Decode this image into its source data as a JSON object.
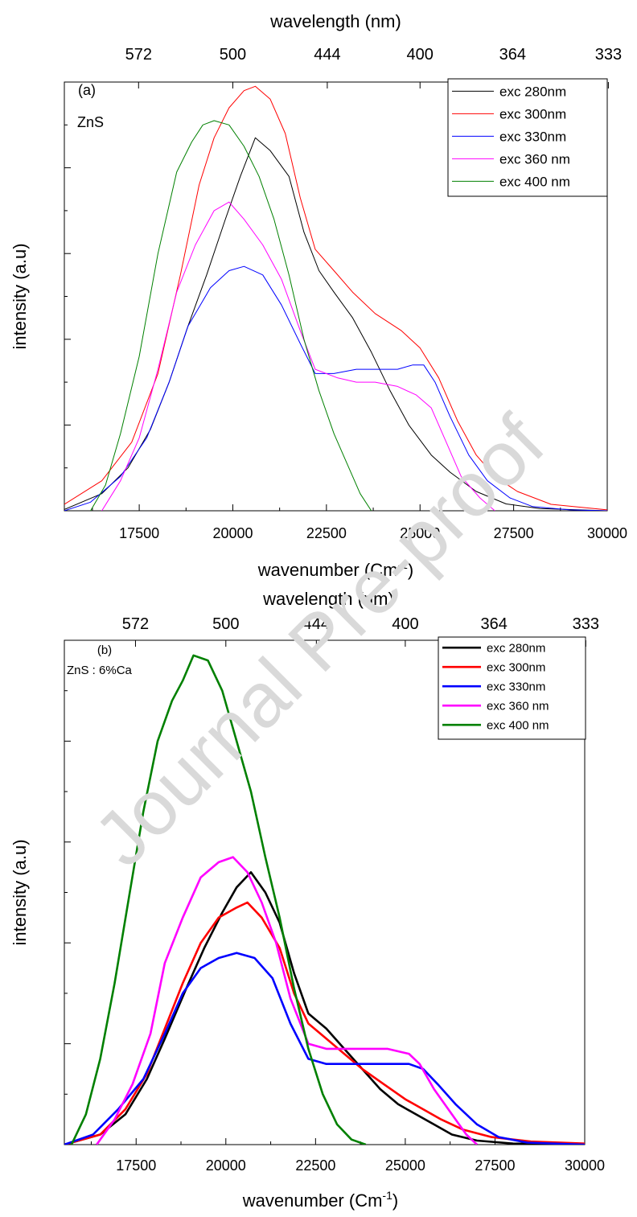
{
  "watermark": "Journal Pre-proof",
  "chart_data": [
    {
      "type": "line",
      "panel_label": "(a)",
      "sample_label": "ZnS",
      "xlabel": "wavenumber (Cm",
      "xlabel_sup": "-1",
      "xlabel_suffix": ")",
      "top_xlabel": "wavelength (nm)",
      "ylabel": "intensity (a.u)",
      "xlim": [
        15500,
        30000
      ],
      "ylim": [
        0,
        1.0
      ],
      "x_ticks": [
        "17500",
        "20000",
        "22500",
        "25000",
        "27500",
        "30000"
      ],
      "top_ticks": [
        "572",
        "500",
        "444",
        "400",
        "364",
        "333"
      ],
      "legend_position": "top-right",
      "grid": false,
      "series": [
        {
          "name": "exc 280nm",
          "color": "#000000",
          "points": [
            [
              15500,
              0.003
            ],
            [
              16500,
              0.04
            ],
            [
              17200,
              0.1
            ],
            [
              17800,
              0.19
            ],
            [
              18300,
              0.3
            ],
            [
              18800,
              0.43
            ],
            [
              19300,
              0.55
            ],
            [
              19800,
              0.68
            ],
            [
              20200,
              0.78
            ],
            [
              20600,
              0.87
            ],
            [
              21000,
              0.84
            ],
            [
              21500,
              0.78
            ],
            [
              21900,
              0.65
            ],
            [
              22300,
              0.56
            ],
            [
              22700,
              0.51
            ],
            [
              23200,
              0.45
            ],
            [
              23700,
              0.37
            ],
            [
              24200,
              0.28
            ],
            [
              24700,
              0.2
            ],
            [
              25300,
              0.13
            ],
            [
              25800,
              0.09
            ],
            [
              26500,
              0.045
            ],
            [
              27300,
              0.016
            ],
            [
              28200,
              0.005
            ],
            [
              30000,
              0.0
            ]
          ]
        },
        {
          "name": "exc 300nm",
          "color": "#ff0000",
          "points": [
            [
              15500,
              0.015
            ],
            [
              16500,
              0.07
            ],
            [
              17300,
              0.16
            ],
            [
              18000,
              0.32
            ],
            [
              18600,
              0.55
            ],
            [
              19100,
              0.76
            ],
            [
              19500,
              0.87
            ],
            [
              19900,
              0.94
            ],
            [
              20300,
              0.98
            ],
            [
              20600,
              0.99
            ],
            [
              21000,
              0.96
            ],
            [
              21400,
              0.88
            ],
            [
              21800,
              0.73
            ],
            [
              22200,
              0.61
            ],
            [
              22700,
              0.56
            ],
            [
              23200,
              0.51
            ],
            [
              23800,
              0.46
            ],
            [
              24500,
              0.42
            ],
            [
              25000,
              0.38
            ],
            [
              25500,
              0.31
            ],
            [
              26000,
              0.21
            ],
            [
              26500,
              0.13
            ],
            [
              27000,
              0.08
            ],
            [
              27600,
              0.045
            ],
            [
              28500,
              0.015
            ],
            [
              30000,
              0.002
            ]
          ]
        },
        {
          "name": "exc 330nm",
          "color": "#0000ff",
          "points": [
            [
              15500,
              0.0
            ],
            [
              16200,
              0.02
            ],
            [
              17000,
              0.08
            ],
            [
              17700,
              0.17
            ],
            [
              18300,
              0.3
            ],
            [
              18800,
              0.43
            ],
            [
              19400,
              0.52
            ],
            [
              19900,
              0.56
            ],
            [
              20300,
              0.57
            ],
            [
              20800,
              0.55
            ],
            [
              21300,
              0.48
            ],
            [
              21800,
              0.39
            ],
            [
              22200,
              0.32
            ],
            [
              22700,
              0.32
            ],
            [
              23300,
              0.33
            ],
            [
              23800,
              0.33
            ],
            [
              24400,
              0.33
            ],
            [
              24800,
              0.34
            ],
            [
              25100,
              0.34
            ],
            [
              25400,
              0.3
            ],
            [
              25800,
              0.22
            ],
            [
              26300,
              0.13
            ],
            [
              26800,
              0.07
            ],
            [
              27400,
              0.03
            ],
            [
              28000,
              0.01
            ],
            [
              29000,
              0.002
            ],
            [
              30000,
              0.0
            ]
          ]
        },
        {
          "name": "exc 360 nm",
          "color": "#ff00ff",
          "points": [
            [
              16500,
              0.0
            ],
            [
              17000,
              0.07
            ],
            [
              17500,
              0.17
            ],
            [
              18000,
              0.33
            ],
            [
              18500,
              0.51
            ],
            [
              19000,
              0.62
            ],
            [
              19500,
              0.7
            ],
            [
              19900,
              0.72
            ],
            [
              20300,
              0.68
            ],
            [
              20800,
              0.62
            ],
            [
              21300,
              0.54
            ],
            [
              21800,
              0.42
            ],
            [
              22200,
              0.33
            ],
            [
              22800,
              0.31
            ],
            [
              23300,
              0.3
            ],
            [
              23800,
              0.3
            ],
            [
              24400,
              0.29
            ],
            [
              24900,
              0.27
            ],
            [
              25300,
              0.24
            ],
            [
              25700,
              0.16
            ],
            [
              26100,
              0.08
            ],
            [
              26600,
              0.03
            ],
            [
              27000,
              0.0
            ]
          ]
        },
        {
          "name": "exc 400 nm",
          "color": "#008000",
          "points": [
            [
              16200,
              0.0
            ],
            [
              16600,
              0.06
            ],
            [
              17000,
              0.18
            ],
            [
              17500,
              0.36
            ],
            [
              18000,
              0.6
            ],
            [
              18500,
              0.79
            ],
            [
              18900,
              0.86
            ],
            [
              19200,
              0.9
            ],
            [
              19500,
              0.91
            ],
            [
              19900,
              0.9
            ],
            [
              20300,
              0.85
            ],
            [
              20700,
              0.78
            ],
            [
              21100,
              0.68
            ],
            [
              21500,
              0.55
            ],
            [
              21900,
              0.4
            ],
            [
              22300,
              0.28
            ],
            [
              22700,
              0.18
            ],
            [
              23100,
              0.1
            ],
            [
              23400,
              0.04
            ],
            [
              23700,
              0.0
            ]
          ]
        }
      ]
    },
    {
      "type": "line",
      "panel_label": "(b)",
      "sample_label": "ZnS : 6%Ca",
      "xlabel": "wavenumber (Cm",
      "xlabel_sup": "-1",
      "xlabel_suffix": ")",
      "top_xlabel": "wavelength (nm)",
      "ylabel": "intensity (a.u)",
      "xlim": [
        15500,
        30000
      ],
      "ylim": [
        0,
        1.0
      ],
      "x_ticks": [
        "17500",
        "20000",
        "22500",
        "25000",
        "27500",
        "30000"
      ],
      "top_ticks": [
        "572",
        "500",
        "444",
        "400",
        "364",
        "333"
      ],
      "legend_position": "top-right",
      "grid": false,
      "series": [
        {
          "name": "exc 280nm",
          "color": "#000000",
          "points": [
            [
              15500,
              0.0
            ],
            [
              16500,
              0.02
            ],
            [
              17200,
              0.06
            ],
            [
              17800,
              0.13
            ],
            [
              18300,
              0.21
            ],
            [
              18900,
              0.31
            ],
            [
              19400,
              0.39
            ],
            [
              19900,
              0.46
            ],
            [
              20300,
              0.51
            ],
            [
              20700,
              0.54
            ],
            [
              21100,
              0.5
            ],
            [
              21500,
              0.44
            ],
            [
              21900,
              0.34
            ],
            [
              22300,
              0.26
            ],
            [
              22800,
              0.23
            ],
            [
              23300,
              0.19
            ],
            [
              23800,
              0.15
            ],
            [
              24300,
              0.11
            ],
            [
              24800,
              0.08
            ],
            [
              25300,
              0.06
            ],
            [
              25800,
              0.04
            ],
            [
              26300,
              0.02
            ],
            [
              27000,
              0.008
            ],
            [
              28000,
              0.002
            ],
            [
              30000,
              0.0
            ]
          ]
        },
        {
          "name": "exc 300nm",
          "color": "#ff0000",
          "points": [
            [
              15500,
              0.0
            ],
            [
              16500,
              0.02
            ],
            [
              17200,
              0.07
            ],
            [
              17800,
              0.14
            ],
            [
              18300,
              0.23
            ],
            [
              18800,
              0.32
            ],
            [
              19300,
              0.4
            ],
            [
              19800,
              0.45
            ],
            [
              20300,
              0.47
            ],
            [
              20600,
              0.48
            ],
            [
              21000,
              0.45
            ],
            [
              21500,
              0.39
            ],
            [
              21900,
              0.3
            ],
            [
              22300,
              0.24
            ],
            [
              22800,
              0.21
            ],
            [
              23300,
              0.18
            ],
            [
              23800,
              0.15
            ],
            [
              24400,
              0.12
            ],
            [
              25000,
              0.09
            ],
            [
              25500,
              0.07
            ],
            [
              26000,
              0.05
            ],
            [
              26600,
              0.03
            ],
            [
              27400,
              0.015
            ],
            [
              28500,
              0.006
            ],
            [
              30000,
              0.002
            ]
          ]
        },
        {
          "name": "exc 330nm",
          "color": "#0000ff",
          "points": [
            [
              15500,
              0.0
            ],
            [
              16300,
              0.02
            ],
            [
              17000,
              0.07
            ],
            [
              17700,
              0.13
            ],
            [
              18300,
              0.22
            ],
            [
              18800,
              0.3
            ],
            [
              19300,
              0.35
            ],
            [
              19800,
              0.37
            ],
            [
              20300,
              0.38
            ],
            [
              20800,
              0.37
            ],
            [
              21300,
              0.33
            ],
            [
              21800,
              0.24
            ],
            [
              22300,
              0.17
            ],
            [
              22800,
              0.16
            ],
            [
              23300,
              0.16
            ],
            [
              23900,
              0.16
            ],
            [
              24500,
              0.16
            ],
            [
              25100,
              0.16
            ],
            [
              25500,
              0.15
            ],
            [
              25900,
              0.12
            ],
            [
              26400,
              0.08
            ],
            [
              27000,
              0.04
            ],
            [
              27600,
              0.015
            ],
            [
              28400,
              0.004
            ],
            [
              30000,
              0.0
            ]
          ]
        },
        {
          "name": "exc 360 nm",
          "color": "#ff00ff",
          "points": [
            [
              16400,
              0.0
            ],
            [
              16900,
              0.05
            ],
            [
              17400,
              0.12
            ],
            [
              17900,
              0.22
            ],
            [
              18300,
              0.36
            ],
            [
              18800,
              0.45
            ],
            [
              19300,
              0.53
            ],
            [
              19800,
              0.56
            ],
            [
              20200,
              0.57
            ],
            [
              20600,
              0.54
            ],
            [
              21000,
              0.48
            ],
            [
              21400,
              0.4
            ],
            [
              21800,
              0.29
            ],
            [
              22300,
              0.2
            ],
            [
              22800,
              0.19
            ],
            [
              23300,
              0.19
            ],
            [
              23900,
              0.19
            ],
            [
              24500,
              0.19
            ],
            [
              25100,
              0.18
            ],
            [
              25400,
              0.16
            ],
            [
              25800,
              0.11
            ],
            [
              26300,
              0.06
            ],
            [
              26700,
              0.02
            ],
            [
              27000,
              0.0
            ]
          ]
        },
        {
          "name": "exc 400 nm",
          "color": "#008000",
          "points": [
            [
              15700,
              0.0
            ],
            [
              16100,
              0.06
            ],
            [
              16500,
              0.17
            ],
            [
              16900,
              0.32
            ],
            [
              17300,
              0.49
            ],
            [
              17700,
              0.66
            ],
            [
              18100,
              0.8
            ],
            [
              18500,
              0.88
            ],
            [
              18800,
              0.92
            ],
            [
              19100,
              0.97
            ],
            [
              19500,
              0.96
            ],
            [
              19900,
              0.9
            ],
            [
              20300,
              0.8
            ],
            [
              20700,
              0.7
            ],
            [
              21100,
              0.57
            ],
            [
              21500,
              0.45
            ],
            [
              21900,
              0.31
            ],
            [
              22300,
              0.19
            ],
            [
              22700,
              0.1
            ],
            [
              23100,
              0.04
            ],
            [
              23500,
              0.01
            ],
            [
              23900,
              0.0
            ]
          ]
        }
      ]
    }
  ]
}
